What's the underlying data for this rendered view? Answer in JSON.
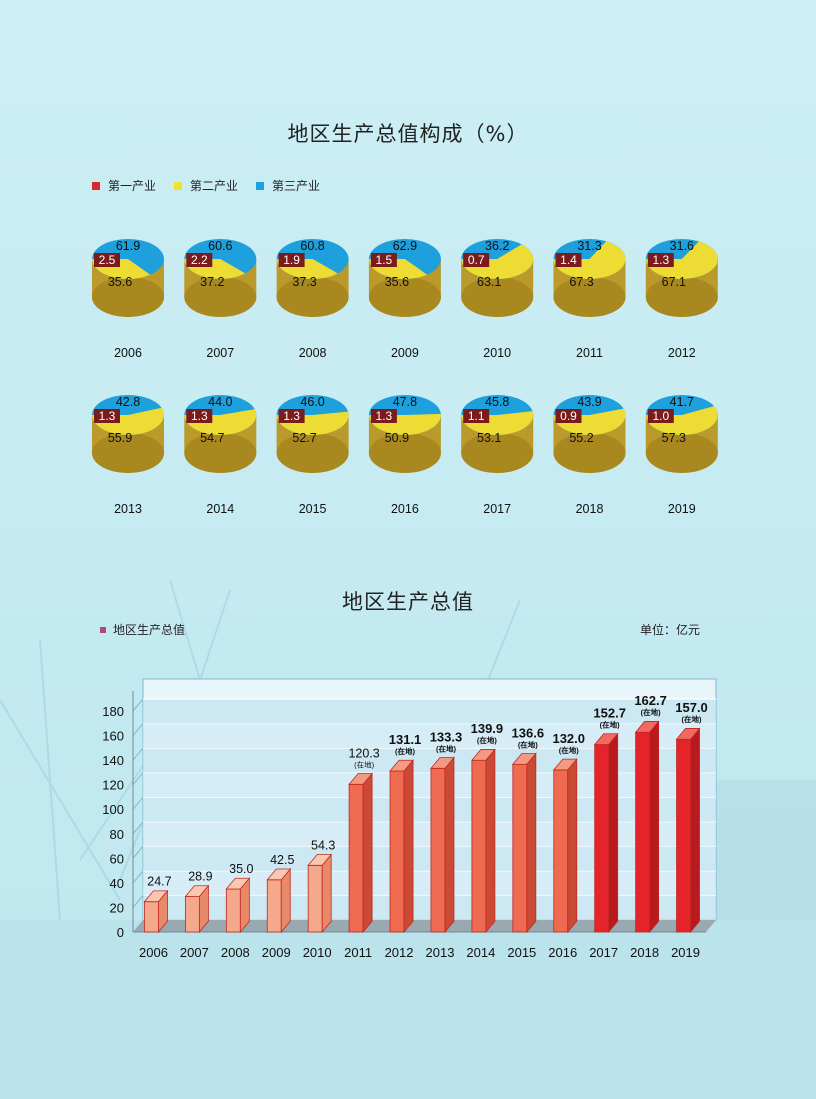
{
  "pie_section": {
    "title": "地区生产总值构成（%）",
    "legend": [
      {
        "label": "第一产业",
        "color": "#d8282e"
      },
      {
        "label": "第二产业",
        "color": "#f2e230"
      },
      {
        "label": "第三产业",
        "color": "#1da0dc"
      }
    ]
  },
  "bar_section": {
    "title": "地区生产总值",
    "legend_label": "地区生产总值",
    "unit_label": "单位：亿元",
    "note_label": "(在地)"
  },
  "chart_data": [
    {
      "type": "pie",
      "title": "地区生产总值构成（%）",
      "series_names": [
        "第一产业",
        "第二产业",
        "第三产业"
      ],
      "items": [
        {
          "year": "2006",
          "primary": "2.5",
          "secondary": "35.6",
          "tertiary": "61.9"
        },
        {
          "year": "2007",
          "primary": "2.2",
          "secondary": "37.2",
          "tertiary": "60.6"
        },
        {
          "year": "2008",
          "primary": "1.9",
          "secondary": "37.3",
          "tertiary": "60.8"
        },
        {
          "year": "2009",
          "primary": "1.5",
          "secondary": "35.6",
          "tertiary": "62.9"
        },
        {
          "year": "2010",
          "primary": "0.7",
          "secondary": "63.1",
          "tertiary": "36.2"
        },
        {
          "year": "2011",
          "primary": "1.4",
          "secondary": "67.3",
          "tertiary": "31.3"
        },
        {
          "year": "2012",
          "primary": "1.3",
          "secondary": "67.1",
          "tertiary": "31.6"
        },
        {
          "year": "2013",
          "primary": "1.3",
          "secondary": "55.9",
          "tertiary": "42.8"
        },
        {
          "year": "2014",
          "primary": "1.3",
          "secondary": "54.7",
          "tertiary": "44.0"
        },
        {
          "year": "2015",
          "primary": "1.3",
          "secondary": "52.7",
          "tertiary": "46.0"
        },
        {
          "year": "2016",
          "primary": "1.3",
          "secondary": "50.9",
          "tertiary": "47.8"
        },
        {
          "year": "2017",
          "primary": "1.1",
          "secondary": "53.1",
          "tertiary": "45.8"
        },
        {
          "year": "2018",
          "primary": "0.9",
          "secondary": "55.2",
          "tertiary": "43.9"
        },
        {
          "year": "2019",
          "primary": "1.0",
          "secondary": "57.3",
          "tertiary": "41.7"
        }
      ]
    },
    {
      "type": "bar",
      "title": "地区生产总值",
      "categories": [
        "2006",
        "2007",
        "2008",
        "2009",
        "2010",
        "2011",
        "2012",
        "2013",
        "2014",
        "2015",
        "2016",
        "2017",
        "2018",
        "2019"
      ],
      "values": [
        24.7,
        28.9,
        35.0,
        42.5,
        54.3,
        120.3,
        131.1,
        133.3,
        139.9,
        136.6,
        132.0,
        152.7,
        162.7,
        157.0
      ],
      "value_labels": [
        "24.7",
        "28.9",
        "35.0",
        "42.5",
        "54.3",
        "120.3",
        "131.1",
        "133.3",
        "139.9",
        "136.6",
        "132.0",
        "152.7",
        "162.7",
        "157.0"
      ],
      "notes": [
        false,
        false,
        false,
        false,
        false,
        true,
        true,
        true,
        true,
        true,
        true,
        true,
        true,
        true
      ],
      "ylim": [
        0,
        180
      ],
      "yticks": [
        "0",
        "20",
        "40",
        "60",
        "80",
        "100",
        "120",
        "140",
        "160",
        "180"
      ],
      "bar_colors": {
        "light": "#f4a88c",
        "medium": "#ee6a50",
        "dark": "#e4242a"
      },
      "legend": "地区生产总值"
    }
  ]
}
